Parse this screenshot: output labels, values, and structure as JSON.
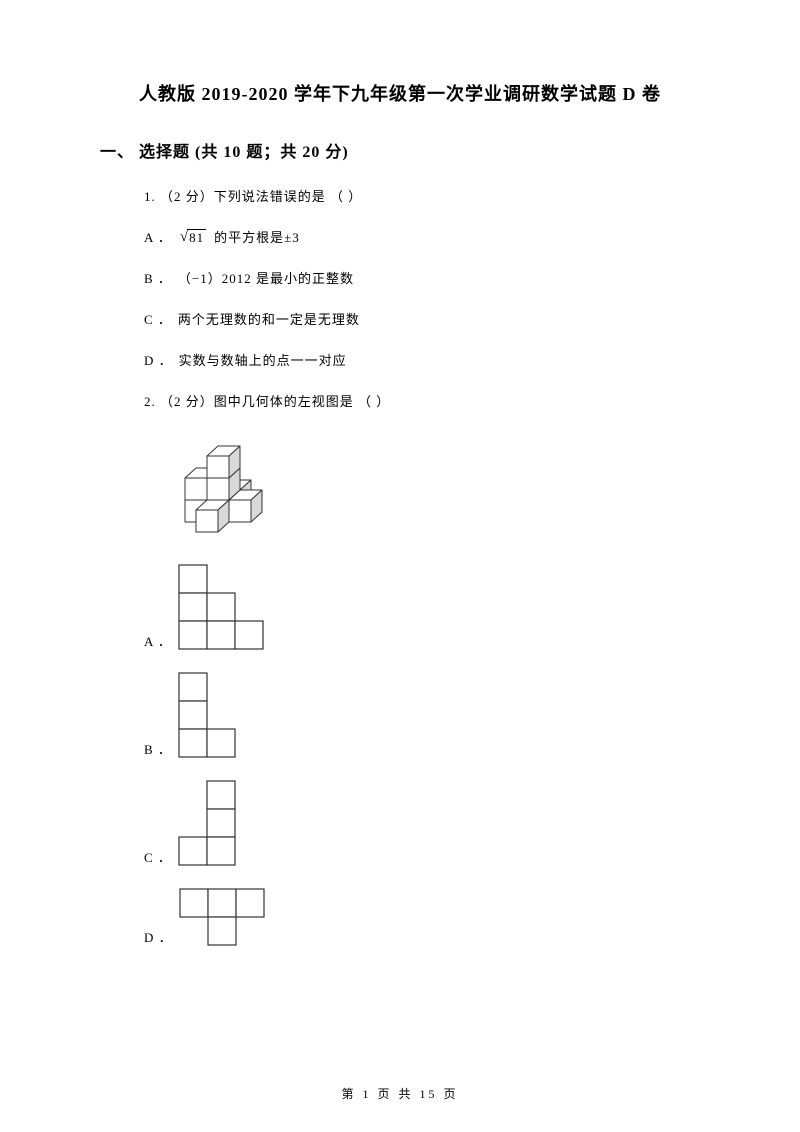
{
  "title": "人教版 2019-2020 学年下九年级第一次学业调研数学试题 D 卷",
  "section": {
    "number": "一、",
    "name": "选择题",
    "info": "(共 10 题；共 20 分)"
  },
  "q1": {
    "prefix": "1.  （2 分）",
    "text": "下列说法错误的是  （      ）",
    "optA_label": "A ．",
    "optA_sqrt_arg": "81",
    "optA_text": "的平方根是±3",
    "optB_label": "B ．",
    "optB_text": "（−1）2012 是最小的正整数",
    "optC_label": "C ．",
    "optC_text": "两个无理数的和一定是无理数",
    "optD_label": "D ．",
    "optD_text": "实数与数轴上的点一一对应"
  },
  "q2": {
    "prefix": "2.  （2 分）",
    "text": "图中几何体的左视图是  （      ）",
    "optA_label": "A ．",
    "optB_label": "B ．",
    "optC_label": "C ．",
    "optD_label": "D ．"
  },
  "footer": "第  1  页  共  15  页",
  "colors": {
    "text": "#000000",
    "bg": "#ffffff",
    "cube_fill": "#ffffff",
    "cube_stroke": "#333333",
    "cube_shade": "#d9d9d9"
  },
  "grid": {
    "cell": 28,
    "stroke": "#333333",
    "fill": "#ffffff",
    "A": [
      [
        0,
        0
      ],
      [
        0,
        1
      ],
      [
        1,
        1
      ],
      [
        0,
        2
      ],
      [
        1,
        2
      ],
      [
        2,
        2
      ]
    ],
    "B": [
      [
        0,
        0
      ],
      [
        0,
        1
      ],
      [
        0,
        2
      ],
      [
        1,
        2
      ]
    ],
    "C": [
      [
        1,
        0
      ],
      [
        1,
        1
      ],
      [
        0,
        2
      ],
      [
        1,
        2
      ]
    ],
    "D": [
      [
        0,
        0
      ],
      [
        1,
        0
      ],
      [
        2,
        0
      ],
      [
        1,
        1
      ]
    ]
  },
  "iso": {
    "ux": 22,
    "uy": 10,
    "vz": 22,
    "cubes": [
      [
        0,
        1,
        0
      ],
      [
        1,
        1,
        0
      ],
      [
        1,
        2,
        0
      ],
      [
        1,
        0,
        0
      ],
      [
        2,
        1,
        0
      ],
      [
        0,
        1,
        1
      ],
      [
        1,
        1,
        1
      ],
      [
        1,
        1,
        2
      ]
    ]
  }
}
